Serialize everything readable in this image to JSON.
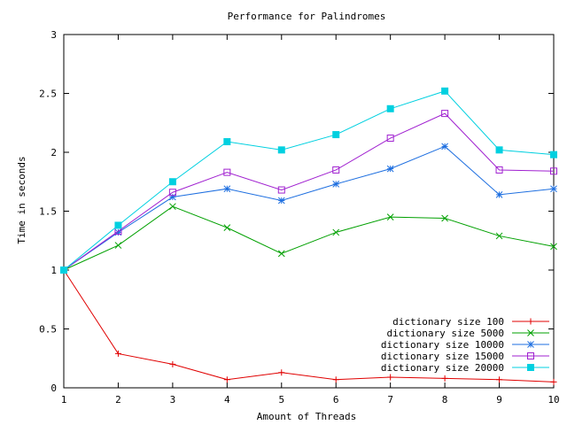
{
  "chart_data": {
    "type": "line",
    "title": "Performance for Palindromes",
    "xlabel": "Amount of Threads",
    "ylabel": "Time in seconds",
    "xlim": [
      1,
      10
    ],
    "ylim": [
      0,
      3
    ],
    "x": [
      1,
      2,
      3,
      4,
      5,
      6,
      7,
      8,
      9,
      10
    ],
    "xticks": [
      "1",
      "2",
      "3",
      "4",
      "5",
      "6",
      "7",
      "8",
      "9",
      "10"
    ],
    "yticks": [
      "0",
      "0.5",
      "1",
      "1.5",
      "2",
      "2.5",
      "3"
    ],
    "grid": false,
    "legend_position": "bottom-right",
    "series": [
      {
        "name": "dictionary size 100",
        "color": "#e00000",
        "marker": "plus",
        "values": [
          1.0,
          0.29,
          0.2,
          0.07,
          0.13,
          0.07,
          0.09,
          0.08,
          0.07,
          0.05
        ]
      },
      {
        "name": "dictionary size 5000",
        "color": "#00a000",
        "marker": "cross",
        "values": [
          1.0,
          1.21,
          1.54,
          1.36,
          1.14,
          1.32,
          1.45,
          1.44,
          1.29,
          1.2
        ]
      },
      {
        "name": "dictionary size 10000",
        "color": "#1e6fe0",
        "marker": "star",
        "values": [
          1.0,
          1.32,
          1.62,
          1.69,
          1.59,
          1.73,
          1.86,
          2.05,
          1.64,
          1.69
        ]
      },
      {
        "name": "dictionary size 15000",
        "color": "#a020d0",
        "marker": "open-square",
        "values": [
          1.0,
          1.33,
          1.66,
          1.83,
          1.68,
          1.85,
          2.12,
          2.33,
          1.85,
          1.84
        ]
      },
      {
        "name": "dictionary size 20000",
        "color": "#00d0e0",
        "marker": "filled-square",
        "values": [
          1.0,
          1.38,
          1.75,
          2.09,
          2.02,
          2.15,
          2.37,
          2.52,
          2.02,
          1.98
        ]
      }
    ]
  }
}
